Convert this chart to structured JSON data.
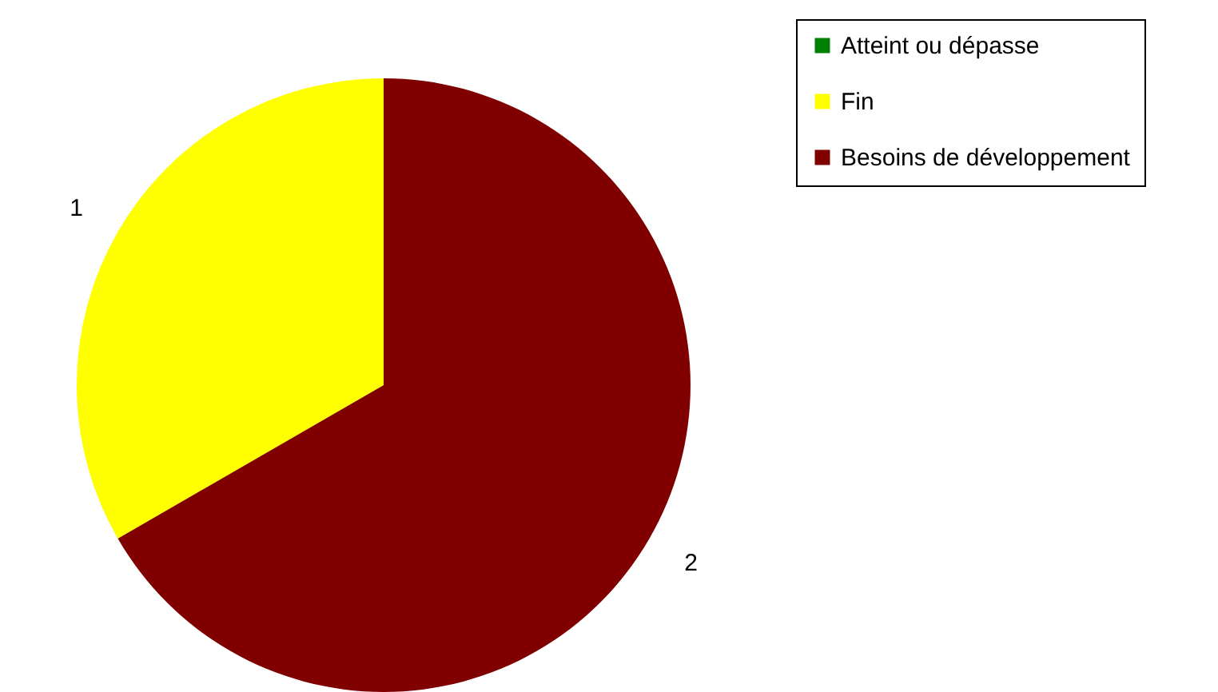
{
  "chart_data": {
    "type": "pie",
    "categories": [
      "Atteint ou dépasse",
      "Fin",
      "Besoins de développement"
    ],
    "values": [
      0,
      1,
      2
    ],
    "colors": [
      "#008000",
      "#ffff00",
      "#800000"
    ],
    "value_labels": [
      null,
      "1",
      "2"
    ],
    "legend": "top right"
  }
}
